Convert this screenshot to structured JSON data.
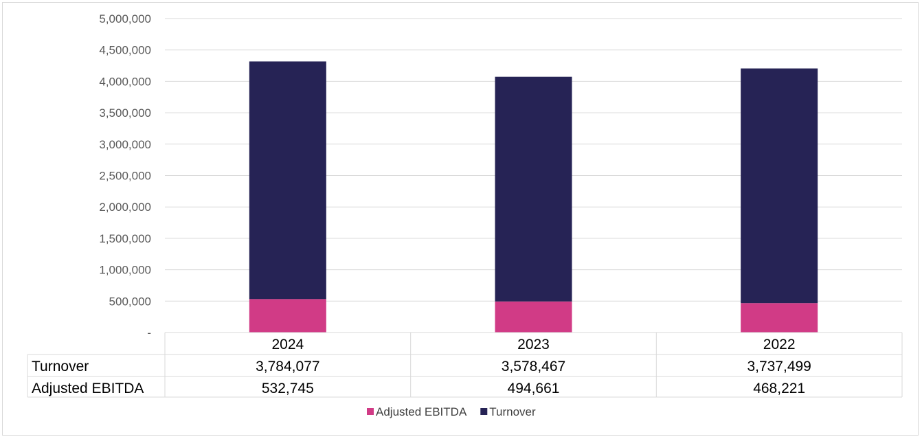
{
  "chart_data": {
    "type": "bar",
    "stacked": true,
    "categories": [
      "2024",
      "2023",
      "2022"
    ],
    "series": [
      {
        "name": "Adjusted EBITDA",
        "values": [
          532745,
          494661,
          468221
        ],
        "color": "#d13b86"
      },
      {
        "name": "Turnover",
        "values": [
          3784077,
          3578467,
          3737499
        ],
        "color": "#262355"
      }
    ],
    "ylim": [
      0,
      5000000
    ],
    "yticks": [
      0,
      500000,
      1000000,
      1500000,
      2000000,
      2500000,
      3000000,
      3500000,
      4000000,
      4500000,
      5000000
    ],
    "ytick_labels": [
      "-",
      "500,000",
      "1,000,000",
      "1,500,000",
      "2,000,000",
      "2,500,000",
      "3,000,000",
      "3,500,000",
      "4,000,000",
      "4,500,000",
      "5,000,000"
    ],
    "grid": true,
    "legend": "bottom",
    "data_table": {
      "rows": [
        {
          "label": "Turnover",
          "cells": [
            "3,784,077",
            "3,578,467",
            "3,737,499"
          ]
        },
        {
          "label": "Adjusted EBITDA",
          "cells": [
            "532,745",
            "494,661",
            "468,221"
          ]
        }
      ]
    },
    "legend_entries": [
      {
        "name": "Adjusted EBITDA",
        "color": "#d13b86"
      },
      {
        "name": "Turnover",
        "color": "#262355"
      }
    ]
  }
}
